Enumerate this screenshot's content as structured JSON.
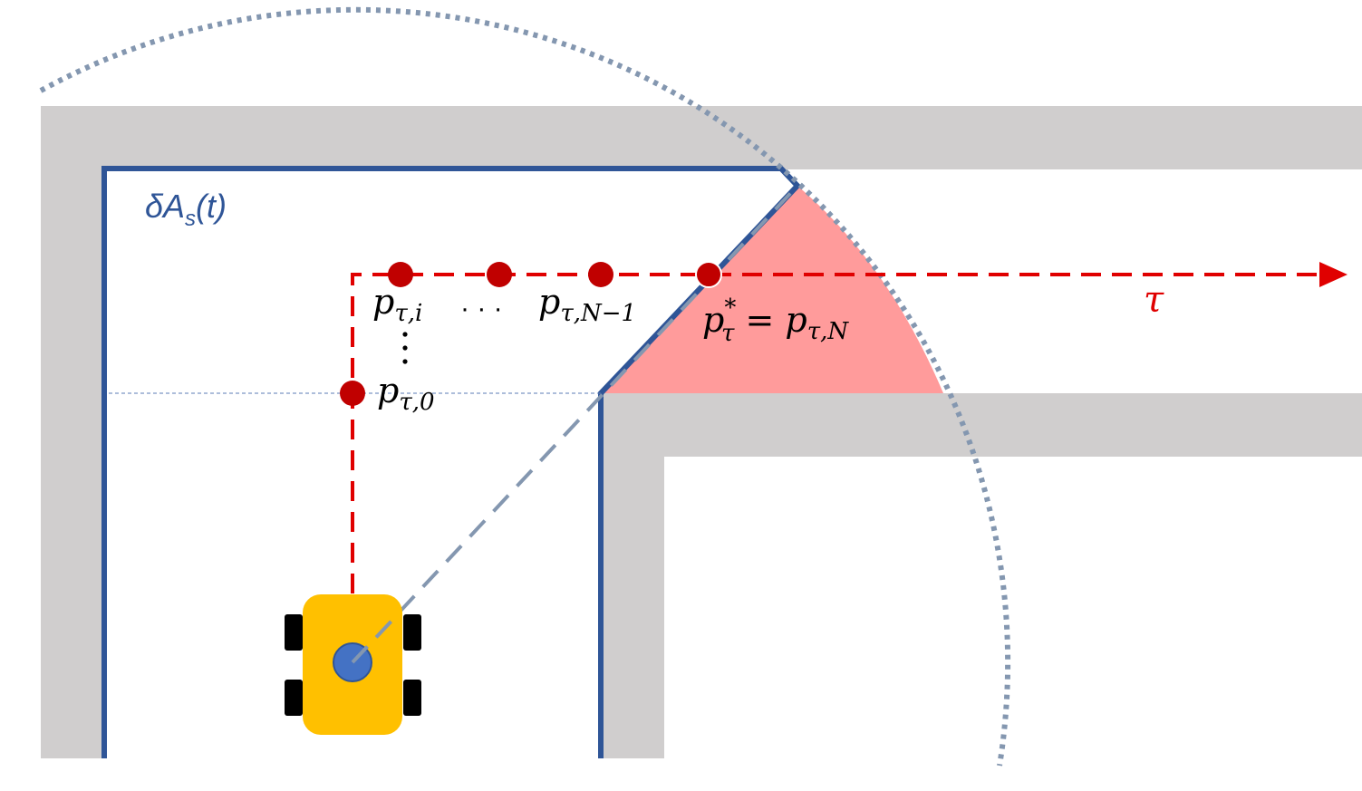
{
  "labels": {
    "boundary": "δA",
    "boundary_sub": "s",
    "boundary_arg": "(t)",
    "point_i": "p",
    "point_i_sub": "τ,i",
    "point_n1": "p",
    "point_n1_sub": "τ,N−1",
    "point_0": "p",
    "point_0_sub": "τ,0",
    "point_star": "p",
    "point_star_sup": "*",
    "point_star_sub": "τ",
    "point_star_eq": " = p",
    "point_star_eq_sub": "τ,N",
    "ellipsis_h": "· · ·",
    "tau": "τ"
  },
  "colors": {
    "wall": "#d0cece",
    "boundary": "#2f5597",
    "range_circle": "#8497b0",
    "path": "#e00000",
    "points": "#c00000",
    "visible_region": "#ff9b9b",
    "robot_body": "#ffc000",
    "robot_wheels": "#000000",
    "robot_center": "#4472c4"
  }
}
